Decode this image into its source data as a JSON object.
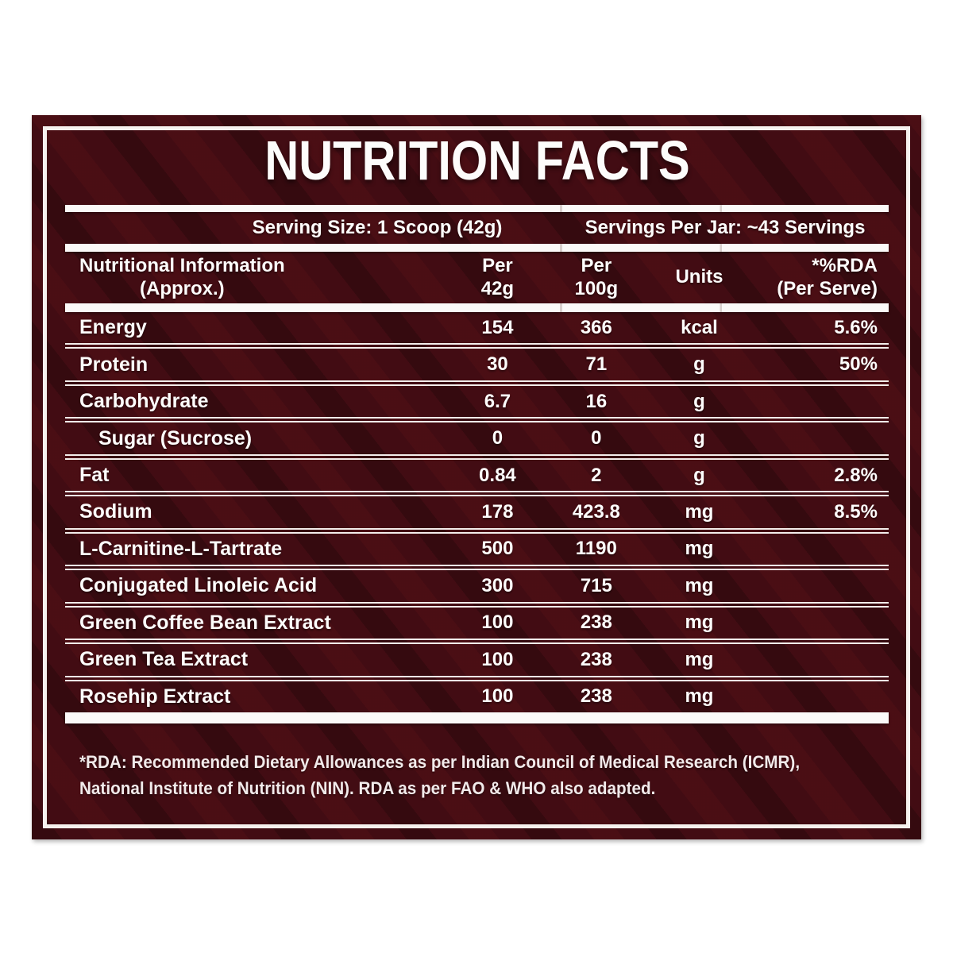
{
  "title": "NUTRITION FACTS",
  "serving": {
    "size": "Serving Size: 1 Scoop (42g)",
    "per_jar": "Servings Per Jar: ~43 Servings"
  },
  "table": {
    "header": {
      "name_line1": "Nutritional Information",
      "name_line2": "(Approx.)",
      "per42_line1": "Per",
      "per42_line2": "42g",
      "per100_line1": "Per",
      "per100_line2": "100g",
      "units": "Units",
      "rda_line1": "*%RDA",
      "rda_line2": "(Per Serve)"
    },
    "rows": [
      {
        "name": "Energy",
        "per_42g": "154",
        "per_100g": "366",
        "units": "kcal",
        "rda": "5.6%",
        "indent": false
      },
      {
        "name": "Protein",
        "per_42g": "30",
        "per_100g": "71",
        "units": "g",
        "rda": "50%",
        "indent": false
      },
      {
        "name": "Carbohydrate",
        "per_42g": "6.7",
        "per_100g": "16",
        "units": "g",
        "rda": "",
        "indent": false
      },
      {
        "name": "Sugar (Sucrose)",
        "per_42g": "0",
        "per_100g": "0",
        "units": "g",
        "rda": "",
        "indent": true
      },
      {
        "name": "Fat",
        "per_42g": "0.84",
        "per_100g": "2",
        "units": "g",
        "rda": "2.8%",
        "indent": false
      },
      {
        "name": "Sodium",
        "per_42g": "178",
        "per_100g": "423.8",
        "units": "mg",
        "rda": "8.5%",
        "indent": false
      },
      {
        "name": "L-Carnitine-L-Tartrate",
        "per_42g": "500",
        "per_100g": "1190",
        "units": "mg",
        "rda": "",
        "indent": false
      },
      {
        "name": "Conjugated Linoleic Acid",
        "per_42g": "300",
        "per_100g": "715",
        "units": "mg",
        "rda": "",
        "indent": false
      },
      {
        "name": "Green Coffee Bean Extract",
        "per_42g": "100",
        "per_100g": "238",
        "units": "mg",
        "rda": "",
        "indent": false
      },
      {
        "name": "Green Tea Extract",
        "per_42g": "100",
        "per_100g": "238",
        "units": "mg",
        "rda": "",
        "indent": false
      },
      {
        "name": "Rosehip Extract",
        "per_42g": "100",
        "per_100g": "238",
        "units": "mg",
        "rda": "",
        "indent": false
      }
    ]
  },
  "footnote_lines": [
    "*RDA: Recommended Dietary Allowances as per Indian Council of Medical Research (ICMR),",
    "National Institute of Nutrition (NIN). RDA as per FAO & WHO also adapted."
  ],
  "colors": {
    "panel_background": "#420c13",
    "bar_white": "#fbf9f8",
    "separator": "#f3ecea",
    "text": "#fdfcfb",
    "page_background": "#ffffff"
  }
}
